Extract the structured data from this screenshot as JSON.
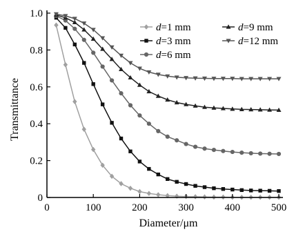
{
  "chart_data": {
    "type": "line",
    "xlabel": "Diameter/μm",
    "ylabel": "Transmittance",
    "xlim": [
      0,
      500
    ],
    "ylim": [
      0,
      1.0
    ],
    "x_ticks": [
      "0",
      "100",
      "200",
      "300",
      "400",
      "500"
    ],
    "y_ticks": [
      "0",
      "0.2",
      "0.4",
      "0.6",
      "0.8",
      "1.0"
    ],
    "grid": false,
    "legend_position": "top-right",
    "x": [
      20,
      40,
      60,
      80,
      100,
      120,
      140,
      160,
      180,
      200,
      220,
      240,
      260,
      280,
      300,
      320,
      340,
      360,
      380,
      400,
      420,
      440,
      460,
      480,
      500
    ],
    "series": [
      {
        "name": "d=1 mm",
        "var": "d",
        "rest": "=1 mm",
        "color": "#a0a0a0",
        "marker": "diamond",
        "values": [
          0.935,
          0.72,
          0.52,
          0.37,
          0.26,
          0.175,
          0.115,
          0.075,
          0.05,
          0.032,
          0.022,
          0.015,
          0.01,
          0.007,
          0.005,
          0.004,
          0.003,
          0.002,
          0.002,
          0.001,
          0.001,
          0.001,
          0.001,
          0.001,
          0.001
        ]
      },
      {
        "name": "d=3 mm",
        "var": "d",
        "rest": "=3 mm",
        "color": "#111111",
        "marker": "square",
        "values": [
          0.975,
          0.92,
          0.83,
          0.73,
          0.615,
          0.505,
          0.405,
          0.32,
          0.25,
          0.195,
          0.155,
          0.125,
          0.1,
          0.085,
          0.073,
          0.063,
          0.056,
          0.05,
          0.046,
          0.043,
          0.04,
          0.038,
          0.037,
          0.036,
          0.035
        ]
      },
      {
        "name": "d=6 mm",
        "var": "d",
        "rest": "=6 mm",
        "color": "#666666",
        "marker": "circle",
        "values": [
          0.985,
          0.96,
          0.915,
          0.855,
          0.785,
          0.71,
          0.635,
          0.565,
          0.5,
          0.445,
          0.4,
          0.36,
          0.33,
          0.31,
          0.29,
          0.275,
          0.265,
          0.258,
          0.252,
          0.247,
          0.243,
          0.24,
          0.238,
          0.237,
          0.236
        ]
      },
      {
        "name": "d=9 mm",
        "var": "d",
        "rest": "=9 mm",
        "color": "#222222",
        "marker": "triangle-up",
        "values": [
          0.99,
          0.975,
          0.95,
          0.91,
          0.86,
          0.805,
          0.75,
          0.695,
          0.65,
          0.61,
          0.575,
          0.55,
          0.53,
          0.515,
          0.505,
          0.497,
          0.49,
          0.486,
          0.483,
          0.48,
          0.478,
          0.477,
          0.476,
          0.475,
          0.474
        ]
      },
      {
        "name": "d=12 mm",
        "var": "d",
        "rest": "=12 mm",
        "color": "#555555",
        "marker": "triangle-down",
        "values": [
          0.995,
          0.985,
          0.97,
          0.945,
          0.91,
          0.865,
          0.815,
          0.77,
          0.73,
          0.7,
          0.68,
          0.667,
          0.658,
          0.652,
          0.649,
          0.647,
          0.646,
          0.645,
          0.645,
          0.645,
          0.644,
          0.644,
          0.644,
          0.644,
          0.644
        ]
      }
    ]
  }
}
